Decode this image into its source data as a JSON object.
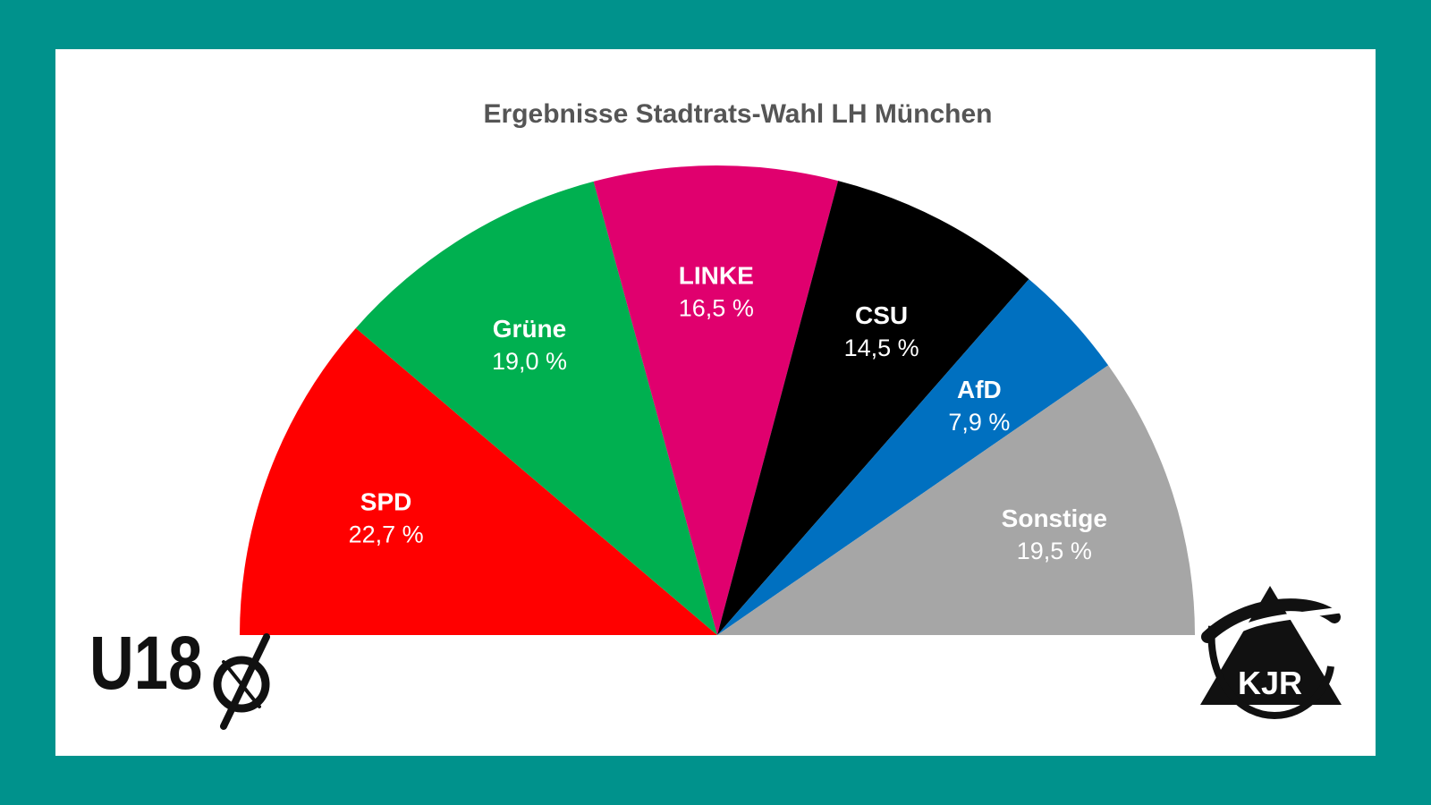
{
  "chart_data": {
    "type": "pie",
    "variant": "semicircle",
    "title": "Ergebnisse Stadtrats-Wahl LH München",
    "categories": [
      "SPD",
      "Grüne",
      "LINKE",
      "CSU",
      "AfD",
      "Sonstige"
    ],
    "values": [
      22.7,
      19.0,
      16.5,
      14.5,
      7.9,
      19.5
    ],
    "value_labels": [
      "22,7 %",
      "19,0 %",
      "16,5 %",
      "14,5 %",
      "7,9 %",
      "19,5 %"
    ],
    "colors": [
      "#ff0000",
      "#00b050",
      "#e0006e",
      "#000000",
      "#0070c0",
      "#a6a6a6"
    ],
    "label_colors": [
      "#ffffff",
      "#ffffff",
      "#ffffff",
      "#ffffff",
      "#ffffff",
      "#ffffff"
    ]
  },
  "logos": {
    "left": {
      "icon": "u18-logo",
      "text": "U18"
    },
    "right": {
      "icon": "kjr-logo",
      "text": "KJR"
    }
  },
  "colors": {
    "background": "#00928c",
    "card": "#ffffff"
  }
}
